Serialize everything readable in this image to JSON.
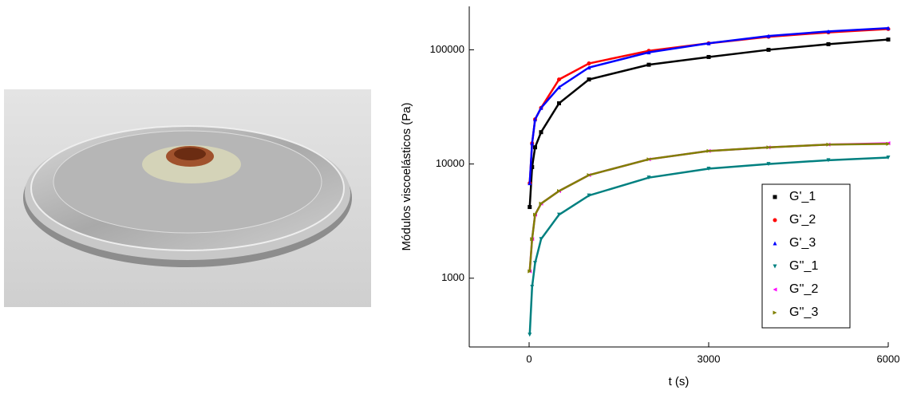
{
  "chart_data": {
    "type": "scatter",
    "x_label": "t (s)",
    "y_label": "Módulos viscoelásticos (Pa)",
    "xlim": [
      -1000,
      6000
    ],
    "xticks": [
      0,
      3000,
      6000
    ],
    "ylim": [
      250,
      240000
    ],
    "yticks": [
      1000,
      10000,
      100000
    ],
    "ylog": true,
    "legend": "bottom-right",
    "x": [
      10,
      50,
      100,
      200,
      500,
      1000,
      2000,
      3000,
      4000,
      5000,
      6000
    ],
    "series": [
      {
        "name": "G'_1",
        "color": "#000000",
        "marker": "square",
        "values": [
          4200,
          9400,
          14000,
          19000,
          34000,
          55000,
          74000,
          86500,
          100000,
          112000,
          123000
        ]
      },
      {
        "name": "G'_2",
        "color": "#ff0000",
        "marker": "circle",
        "values": [
          6800,
          15200,
          24600,
          31000,
          55000,
          76000,
          98000,
          114000,
          130000,
          142000,
          152000
        ]
      },
      {
        "name": "G'_3",
        "color": "#0000ff",
        "marker": "triangle-up",
        "values": [
          6800,
          15200,
          24600,
          31000,
          47000,
          70000,
          95000,
          114000,
          132000,
          145000,
          155000
        ]
      },
      {
        "name": "G''_1",
        "color": "#008080",
        "marker": "triangle-down",
        "values": [
          320,
          840,
          1360,
          2200,
          3600,
          5300,
          7600,
          9100,
          10000,
          10800,
          11400
        ]
      },
      {
        "name": "G''_2",
        "color": "#ff00ff",
        "marker": "triangle-left",
        "values": [
          1150,
          2200,
          3600,
          4500,
          5800,
          8000,
          11000,
          13000,
          14000,
          14800,
          15200
        ]
      },
      {
        "name": "G''_3",
        "color": "#808000",
        "marker": "triangle-right",
        "values": [
          1150,
          2200,
          3600,
          4500,
          5800,
          8000,
          11000,
          13000,
          14000,
          14800,
          15000
        ]
      }
    ]
  }
}
